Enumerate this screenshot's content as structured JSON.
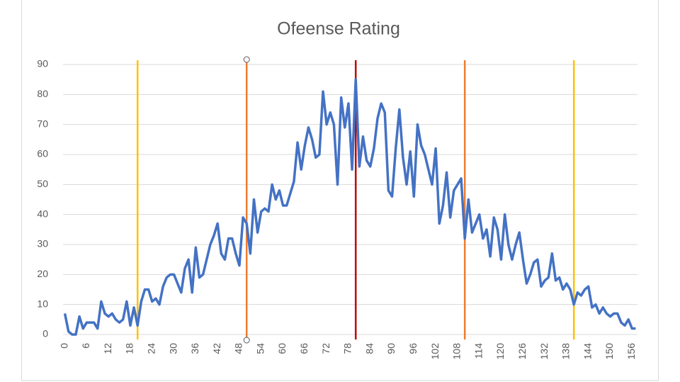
{
  "chart_data": {
    "type": "line",
    "title": "Ofeense Rating",
    "x": [
      0,
      1,
      2,
      3,
      4,
      5,
      6,
      7,
      8,
      9,
      10,
      11,
      12,
      13,
      14,
      15,
      16,
      17,
      18,
      19,
      20,
      21,
      22,
      23,
      24,
      25,
      26,
      27,
      28,
      29,
      30,
      31,
      32,
      33,
      34,
      35,
      36,
      37,
      38,
      39,
      40,
      41,
      42,
      43,
      44,
      45,
      46,
      47,
      48,
      49,
      50,
      51,
      52,
      53,
      54,
      55,
      56,
      57,
      58,
      59,
      60,
      61,
      62,
      63,
      64,
      65,
      66,
      67,
      68,
      69,
      70,
      71,
      72,
      73,
      74,
      75,
      76,
      77,
      78,
      79,
      80,
      81,
      82,
      83,
      84,
      85,
      86,
      87,
      88,
      89,
      90,
      91,
      92,
      93,
      94,
      95,
      96,
      97,
      98,
      99,
      100,
      101,
      102,
      103,
      104,
      105,
      106,
      107,
      108,
      109,
      110,
      111,
      112,
      113,
      114,
      115,
      116,
      117,
      118,
      119,
      120,
      121,
      122,
      123,
      124,
      125,
      126,
      127,
      128,
      129,
      130,
      131,
      132,
      133,
      134,
      135,
      136,
      137,
      138,
      139,
      140,
      141,
      142,
      143,
      144,
      145,
      146,
      147,
      148,
      149,
      150,
      151,
      152,
      153,
      154,
      155,
      156,
      157
    ],
    "series": [
      {
        "name": "Ofeense Rating",
        "color": "#4472c4",
        "values": [
          7,
          1,
          0,
          0,
          6,
          2,
          4,
          4,
          4,
          2,
          11,
          7,
          6,
          7,
          5,
          4,
          5,
          11,
          3,
          9,
          3,
          11,
          15,
          15,
          11,
          12,
          10,
          16,
          19,
          20,
          20,
          17,
          14,
          22,
          25,
          14,
          29,
          19,
          20,
          25,
          30,
          33,
          37,
          27,
          25,
          32,
          32,
          27,
          23,
          39,
          37,
          27,
          45,
          34,
          41,
          42,
          41,
          50,
          45,
          48,
          43,
          43,
          47,
          51,
          64,
          55,
          63,
          69,
          65,
          59,
          60,
          81,
          70,
          74,
          70,
          50,
          79,
          69,
          77,
          55,
          85,
          56,
          66,
          58,
          56,
          62,
          72,
          77,
          74,
          48,
          46,
          62,
          75,
          59,
          50,
          61,
          46,
          70,
          63,
          60,
          55,
          50,
          62,
          37,
          43,
          54,
          39,
          48,
          50,
          52,
          32,
          45,
          34,
          37,
          40,
          32,
          35,
          26,
          39,
          35,
          25,
          40,
          30,
          25,
          30,
          34,
          25,
          17,
          20,
          24,
          25,
          16,
          18,
          19,
          27,
          18,
          19,
          15,
          17,
          15,
          10,
          14,
          13,
          15,
          16,
          9,
          10,
          7,
          9,
          7,
          6,
          7,
          7,
          4,
          3,
          5,
          2,
          2
        ]
      }
    ],
    "vlines": [
      {
        "value": 20,
        "color": "#ffc000"
      },
      {
        "value": 50,
        "color": "#ed7d31"
      },
      {
        "value": 80,
        "color": "#c00000"
      },
      {
        "value": 110,
        "color": "#ed7d31"
      },
      {
        "value": 140,
        "color": "#ffc000"
      }
    ],
    "xlim": [
      -0.5,
      157.5
    ],
    "xticks": [
      0,
      6,
      12,
      18,
      24,
      30,
      36,
      42,
      48,
      54,
      60,
      66,
      72,
      78,
      84,
      90,
      96,
      102,
      108,
      114,
      120,
      126,
      132,
      138,
      144,
      150,
      156
    ],
    "ylim": [
      0,
      90
    ],
    "yticks": [
      0,
      10,
      20,
      30,
      40,
      50,
      60,
      70,
      80,
      90
    ],
    "grid": true
  }
}
